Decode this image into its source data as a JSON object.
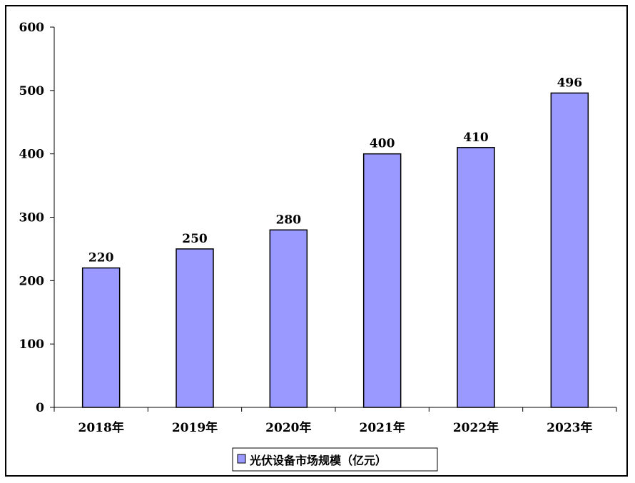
{
  "chart_data": {
    "type": "bar",
    "categories": [
      "2018年",
      "2019年",
      "2020年",
      "2021年",
      "2022年",
      "2023年"
    ],
    "series": [
      {
        "name": "光伏设备市场规模（亿元）",
        "values": [
          220,
          250,
          280,
          400,
          410,
          496
        ]
      }
    ],
    "y_ticks": [
      "0",
      "100",
      "200",
      "300",
      "400",
      "500",
      "600"
    ],
    "ylim": [
      0,
      600
    ],
    "grid": false,
    "legend_position": "bottom-center",
    "colors": {
      "bar_fill": "#9999ff",
      "bar_stroke": "#000000"
    }
  }
}
